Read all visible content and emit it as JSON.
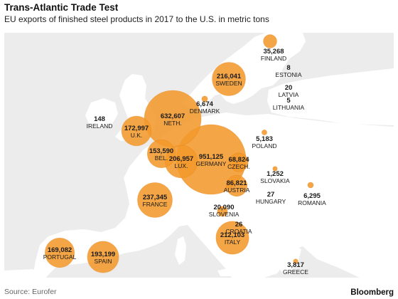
{
  "title": "Trans-Atlantic Trade Test",
  "subtitle": "EU exports of finished steel products in 2017 to the U.S. in metric tons",
  "source": "Source: Eurofer",
  "brand": "Bloomberg",
  "colors": {
    "bubble": "#f39a2c",
    "bubble_dark": "#ea7d10",
    "land": "#ffffff",
    "sea": "#ececec"
  },
  "countries": [
    {
      "name": "FINLAND",
      "value": 35268,
      "label": "35,268"
    },
    {
      "name": "ESTONIA",
      "value": 8,
      "label": "8"
    },
    {
      "name": "LATVIA",
      "value": 20,
      "label": "20"
    },
    {
      "name": "LITHUANIA",
      "value": 5,
      "label": "5"
    },
    {
      "name": "SWEDEN",
      "value": 216041,
      "label": "216,041"
    },
    {
      "name": "DENMARK",
      "value": 6674,
      "label": "6,674"
    },
    {
      "name": "IRELAND",
      "value": 148,
      "label": "148"
    },
    {
      "name": "U.K.",
      "value": 172997,
      "label": "172,997"
    },
    {
      "name": "NETH.",
      "value": 632607,
      "label": "632,607"
    },
    {
      "name": "BEL.",
      "value": 153590,
      "label": "153,590"
    },
    {
      "name": "LUX.",
      "value": 206957,
      "label": "206,957"
    },
    {
      "name": "GERMANY",
      "value": 951125,
      "label": "951,125"
    },
    {
      "name": "CZECH.",
      "value": 68824,
      "label": "68,824"
    },
    {
      "name": "POLAND",
      "value": 5183,
      "label": "5,183"
    },
    {
      "name": "SLOVAKIA",
      "value": 1252,
      "label": "1,252"
    },
    {
      "name": "AUSTRIA",
      "value": 86821,
      "label": "86,821"
    },
    {
      "name": "HUNGARY",
      "value": 27,
      "label": "27"
    },
    {
      "name": "ROMANIA",
      "value": 6295,
      "label": "6,295"
    },
    {
      "name": "SLOVENIA",
      "value": 20090,
      "label": "20,090"
    },
    {
      "name": "CROATIA",
      "value": 26,
      "label": "26"
    },
    {
      "name": "FRANCE",
      "value": 237345,
      "label": "237,345"
    },
    {
      "name": "ITALY",
      "value": 212103,
      "label": "212,103"
    },
    {
      "name": "PORTUGAL",
      "value": 169082,
      "label": "169,082"
    },
    {
      "name": "SPAIN",
      "value": 193199,
      "label": "193,199"
    },
    {
      "name": "GREECE",
      "value": 3817,
      "label": "3,817"
    }
  ]
}
